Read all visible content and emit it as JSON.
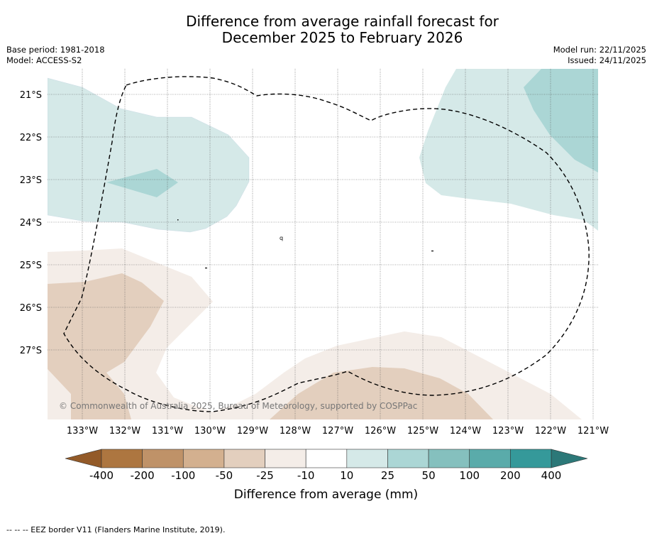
{
  "title": {
    "line1": "Difference from average rainfall forecast for",
    "line2": "December 2025 to February 2026"
  },
  "meta_left": {
    "base_period": "Base period: 1981-2018",
    "model": "Model: ACCESS-S2"
  },
  "meta_right": {
    "model_run": "Model run: 22/11/2025",
    "issued": "Issued: 24/11/2025"
  },
  "map": {
    "lat_labels": [
      "21°S",
      "22°S",
      "23°S",
      "24°S",
      "25°S",
      "26°S",
      "27°S"
    ],
    "lon_labels": [
      "133°W",
      "132°W",
      "131°W",
      "130°W",
      "129°W",
      "128°W",
      "127°W",
      "126°W",
      "125°W",
      "124°W",
      "123°W",
      "122°W",
      "121°W"
    ],
    "copyright": "© Commonwealth of Australia 2025, Bureau of Meteorology, supported by COSPPac",
    "marker_text": "q"
  },
  "colorbar": {
    "title": "Difference from average (mm)",
    "ticks": [
      "-400",
      "-200",
      "-100",
      "-50",
      "-25",
      "-10",
      "10",
      "25",
      "50",
      "100",
      "200",
      "400"
    ],
    "colors": [
      "#ad7640",
      "#bf9268",
      "#d3b08f",
      "#e3cfbe",
      "#f4ede8",
      "#ffffff",
      "#d5e9e8",
      "#abd6d5",
      "#85c0be",
      "#5aabaa",
      "#35999a"
    ],
    "extend_low_color": "#935a28",
    "extend_high_color": "#2c7878"
  },
  "footer": "--  --  -- EEZ border V11 (Flanders Marine Institute, 2019)."
}
